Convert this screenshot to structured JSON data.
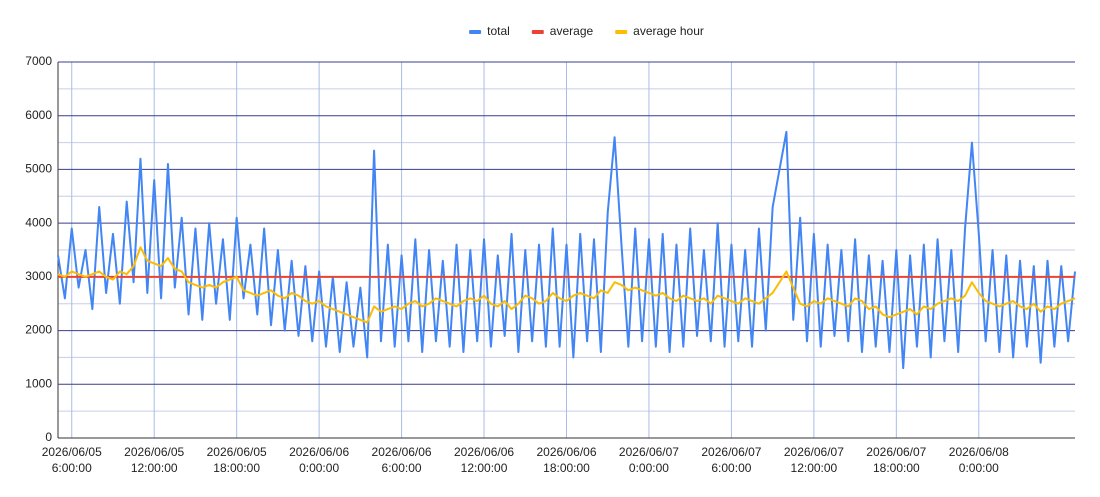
{
  "chart_data": {
    "type": "line",
    "categories": [
      null,
      null,
      "2026/06/05 6:00:00",
      null,
      null,
      null,
      null,
      null,
      null,
      null,
      null,
      null,
      null,
      null,
      "2026/06/05 12:00:00",
      null,
      null,
      null,
      null,
      null,
      null,
      null,
      null,
      null,
      null,
      null,
      "2026/06/05 18:00:00",
      null,
      null,
      null,
      null,
      null,
      null,
      null,
      null,
      null,
      null,
      null,
      "2026/06/06 0:00:00",
      null,
      null,
      null,
      null,
      null,
      null,
      null,
      null,
      null,
      null,
      null,
      "2026/06/06 6:00:00",
      null,
      null,
      null,
      null,
      null,
      null,
      null,
      null,
      null,
      null,
      null,
      "2026/06/06 12:00:00",
      null,
      null,
      null,
      null,
      null,
      null,
      null,
      null,
      null,
      null,
      null,
      "2026/06/06 18:00:00",
      null,
      null,
      null,
      null,
      null,
      null,
      null,
      null,
      null,
      null,
      null,
      "2026/06/07 0:00:00",
      null,
      null,
      null,
      null,
      null,
      null,
      null,
      null,
      null,
      null,
      null,
      "2026/06/07 6:00:00",
      null,
      null,
      null,
      null,
      null,
      null,
      null,
      null,
      null,
      null,
      null,
      "2026/06/07 12:00:00",
      null,
      null,
      null,
      null,
      null,
      null,
      null,
      null,
      null,
      null,
      null,
      "2026/06/07 18:00:00",
      null,
      null,
      null,
      null,
      null,
      null,
      null,
      null,
      null,
      null,
      null,
      "2026/06/08 0:00:00",
      null,
      null,
      null,
      null,
      null,
      null,
      null,
      null,
      null,
      null,
      null,
      null,
      null,
      null
    ],
    "series": [
      {
        "name": "total",
        "color": "#4285f4",
        "values": [
          3400,
          2600,
          3900,
          2800,
          3500,
          2400,
          4300,
          2700,
          3800,
          2500,
          4400,
          2900,
          5200,
          2700,
          4800,
          2600,
          5100,
          2800,
          4100,
          2300,
          3900,
          2200,
          4000,
          2500,
          3700,
          2200,
          4100,
          2600,
          3600,
          2300,
          3900,
          2100,
          3500,
          2000,
          3300,
          1900,
          3200,
          1800,
          3100,
          1700,
          3000,
          1600,
          2900,
          1700,
          2800,
          1500,
          5350,
          1800,
          3600,
          1700,
          3400,
          1800,
          3700,
          1600,
          3500,
          1800,
          3300,
          1700,
          3600,
          1600,
          3500,
          1800,
          3700,
          1700,
          3400,
          1900,
          3800,
          1600,
          3500,
          1800,
          3600,
          1700,
          3900,
          1700,
          3600,
          1500,
          3800,
          1800,
          3700,
          1600,
          4200,
          5600,
          3600,
          1700,
          3900,
          1800,
          3700,
          1700,
          3800,
          1600,
          3600,
          1700,
          3900,
          1900,
          3500,
          1800,
          4000,
          1700,
          3600,
          1800,
          3500,
          1700,
          3900,
          2000,
          4300,
          5000,
          5700,
          2200,
          4100,
          1800,
          3800,
          1700,
          3600,
          1900,
          3500,
          1800,
          3700,
          1600,
          3400,
          1700,
          3300,
          1600,
          3500,
          1300,
          3400,
          1700,
          3600,
          1500,
          3700,
          1800,
          3500,
          1600,
          3900,
          5500,
          3800,
          1800,
          3500,
          1600,
          3400,
          1500,
          3300,
          1700,
          3200,
          1400,
          3300,
          1700,
          3200,
          1800,
          3100
        ]
      },
      {
        "name": "average",
        "color": "#ea4335",
        "values": [
          3000,
          3000,
          3000,
          3000,
          3000,
          3000,
          3000,
          3000,
          3000,
          3000,
          3000,
          3000,
          3000,
          3000,
          3000,
          3000,
          3000,
          3000,
          3000,
          3000,
          3000,
          3000,
          3000,
          3000,
          3000,
          3000,
          3000,
          3000,
          3000,
          3000,
          3000,
          3000,
          3000,
          3000,
          3000,
          3000,
          3000,
          3000,
          3000,
          3000,
          3000,
          3000,
          3000,
          3000,
          3000,
          3000,
          3000,
          3000,
          3000,
          3000,
          3000,
          3000,
          3000,
          3000,
          3000,
          3000,
          3000,
          3000,
          3000,
          3000,
          3000,
          3000,
          3000,
          3000,
          3000,
          3000,
          3000,
          3000,
          3000,
          3000,
          3000,
          3000,
          3000,
          3000,
          3000,
          3000,
          3000,
          3000,
          3000,
          3000,
          3000,
          3000,
          3000,
          3000,
          3000,
          3000,
          3000,
          3000,
          3000,
          3000,
          3000,
          3000,
          3000,
          3000,
          3000,
          3000,
          3000,
          3000,
          3000,
          3000,
          3000,
          3000,
          3000,
          3000,
          3000,
          3000,
          3000,
          3000,
          3000,
          3000,
          3000,
          3000,
          3000,
          3000,
          3000,
          3000,
          3000,
          3000,
          3000,
          3000,
          3000,
          3000,
          3000,
          3000,
          3000,
          3000,
          3000,
          3000,
          3000,
          3000,
          3000,
          3000,
          3000,
          3000,
          3000,
          3000,
          3000,
          3000,
          3000,
          3000,
          3000,
          3000,
          3000,
          3000,
          3000,
          3000,
          3000,
          3000,
          3000
        ]
      },
      {
        "name": "average hour",
        "color": "#fbbc04",
        "values": [
          3050,
          3000,
          3100,
          3050,
          3000,
          3050,
          3100,
          3000,
          2950,
          3100,
          3050,
          3200,
          3550,
          3300,
          3250,
          3200,
          3350,
          3150,
          3100,
          2900,
          2850,
          2800,
          2850,
          2800,
          2900,
          2950,
          3000,
          2750,
          2700,
          2650,
          2700,
          2750,
          2650,
          2600,
          2700,
          2650,
          2550,
          2500,
          2550,
          2450,
          2400,
          2350,
          2300,
          2250,
          2200,
          2150,
          2450,
          2350,
          2400,
          2450,
          2400,
          2500,
          2550,
          2450,
          2500,
          2600,
          2550,
          2500,
          2450,
          2550,
          2600,
          2550,
          2650,
          2500,
          2450,
          2550,
          2400,
          2500,
          2650,
          2600,
          2500,
          2550,
          2700,
          2600,
          2550,
          2650,
          2700,
          2650,
          2600,
          2750,
          2700,
          2900,
          2850,
          2750,
          2800,
          2750,
          2700,
          2650,
          2700,
          2600,
          2550,
          2650,
          2600,
          2550,
          2600,
          2500,
          2650,
          2600,
          2550,
          2500,
          2600,
          2550,
          2500,
          2600,
          2700,
          2900,
          3100,
          2800,
          2500,
          2450,
          2550,
          2500,
          2600,
          2550,
          2500,
          2450,
          2600,
          2550,
          2400,
          2450,
          2300,
          2250,
          2300,
          2350,
          2400,
          2300,
          2450,
          2400,
          2500,
          2550,
          2600,
          2550,
          2650,
          2900,
          2700,
          2550,
          2500,
          2450,
          2500,
          2550,
          2450,
          2400,
          2500,
          2350,
          2450,
          2400,
          2500,
          2550,
          2600
        ]
      }
    ],
    "ylim": [
      0,
      7000
    ],
    "yticks": [
      0,
      1000,
      2000,
      3000,
      4000,
      5000,
      6000,
      7000
    ],
    "grid": true,
    "legend": "top"
  }
}
